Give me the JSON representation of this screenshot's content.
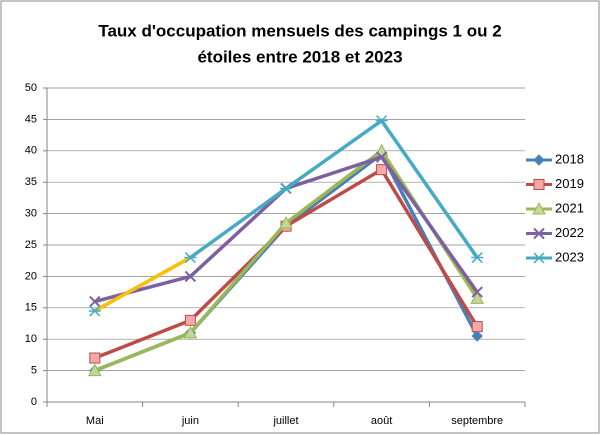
{
  "chart_data": {
    "type": "line",
    "title": [
      "Taux d'occupation mensuels des campings  1 ou 2",
      "étoiles entre 2018 et 2023"
    ],
    "categories": [
      "Mai",
      "juin",
      "juillet",
      "août",
      "septembre"
    ],
    "series": [
      {
        "name": "2018",
        "color": "#4a7ebb",
        "marker": "diamond",
        "values": [
          5,
          11,
          28,
          39.5,
          10.5
        ]
      },
      {
        "name": "2019",
        "color": "#be4b48",
        "marker": "square",
        "values": [
          7,
          13,
          28,
          37,
          12
        ]
      },
      {
        "name": "2021",
        "color": "#98b954",
        "marker": "triangle",
        "values": [
          5,
          11,
          28.5,
          40,
          16.5
        ]
      },
      {
        "name": "2022",
        "color": "#7d60a0",
        "marker": "x",
        "values": [
          16,
          20,
          34,
          39,
          17.5
        ]
      },
      {
        "name": "2023",
        "color": "#46aac5",
        "marker": "star",
        "first_segment_color": "#ffc000",
        "values": [
          14.5,
          23,
          34,
          44.8,
          23
        ]
      }
    ],
    "ylim": [
      0,
      50
    ],
    "yticks": [
      0,
      5,
      10,
      15,
      20,
      25,
      30,
      35,
      40,
      45,
      50
    ],
    "grid": true,
    "legend": "right"
  }
}
